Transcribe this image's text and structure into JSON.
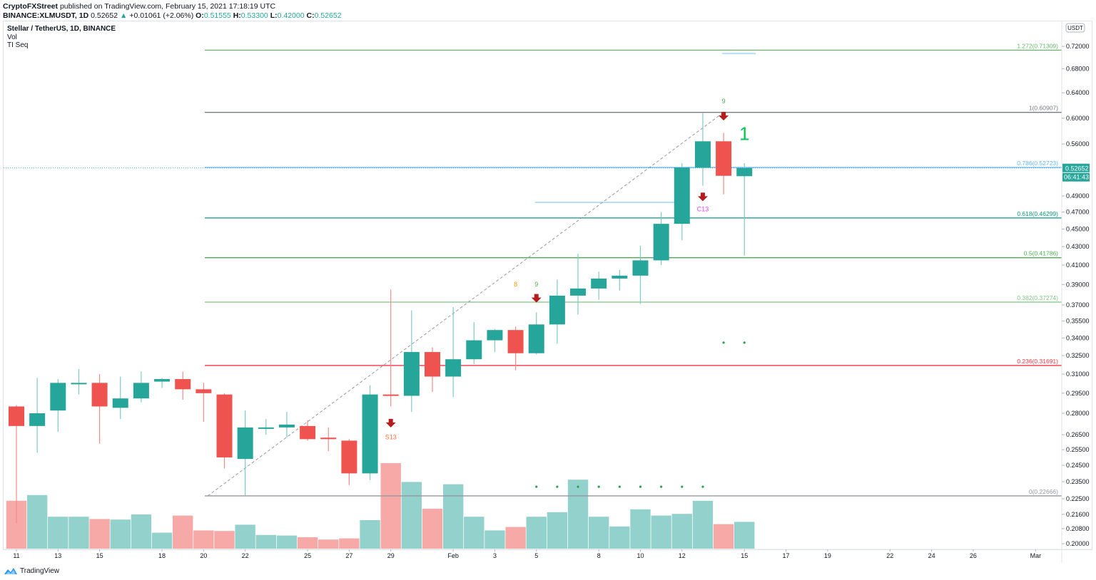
{
  "header": {
    "publisher": "CryptoFXStreet",
    "published_text": "published on TradingView.com, February 15, 2021 17:18:19 UTC",
    "symbol": "BINANCE:XLMUSDT, 1D",
    "last": "0.52652",
    "change": "+0.01061 (+2.06%)",
    "open_label": "O:",
    "open": "0.51555",
    "high_label": "H:",
    "high": "0.53300",
    "low_label": "L:",
    "low": "0.42000",
    "close_label": "C:",
    "close": "0.52652"
  },
  "legend": {
    "title": "Stellar / TetherUS, 1D, BINANCE",
    "vol": "Vol",
    "indicator": "TI Seq"
  },
  "price_axis": {
    "currency": "USDT",
    "last_price_tag": "0.52652",
    "countdown_tag": "06:41:43"
  },
  "footer": {
    "brand": "TradingView"
  },
  "colors": {
    "up": "#26a69a",
    "down": "#ef5350",
    "vol_up": "#93d2cc",
    "vol_down": "#f7a9a7",
    "fib_1272": "#66bb6a",
    "fib_1": "#787b86",
    "fib_0786": "#64b5f6",
    "fib_0618": "#089981",
    "fib_05": "#4caf50",
    "fib_0382": "#81c784",
    "fib_0236": "#f23645",
    "fib_0": "#9598a1"
  },
  "chart_data": {
    "type": "candlestick",
    "title": "Stellar / TetherUS, 1D, BINANCE",
    "xlabel": "",
    "ylabel": "USDT",
    "yscale": "log",
    "ylim": [
      0.196,
      0.75
    ],
    "y_ticks": [
      "0.72000",
      "0.68000",
      "0.64000",
      "0.60000",
      "0.56000",
      "0.52652",
      "0.49000",
      "0.47000",
      "0.45000",
      "0.43000",
      "0.41000",
      "0.39000",
      "0.37000",
      "0.35500",
      "0.34000",
      "0.32500",
      "0.31000",
      "0.29500",
      "0.28000",
      "0.26500",
      "0.25500",
      "0.24500",
      "0.23500",
      "0.22500",
      "0.21600",
      "0.20800",
      "0.20000"
    ],
    "x_ticks": [
      {
        "label": "11",
        "i": 0
      },
      {
        "label": "13",
        "i": 2
      },
      {
        "label": "15",
        "i": 4
      },
      {
        "label": "18",
        "i": 7
      },
      {
        "label": "20",
        "i": 9
      },
      {
        "label": "22",
        "i": 11
      },
      {
        "label": "25",
        "i": 14
      },
      {
        "label": "27",
        "i": 16
      },
      {
        "label": "29",
        "i": 18
      },
      {
        "label": "Feb",
        "i": 21
      },
      {
        "label": "3",
        "i": 23
      },
      {
        "label": "5",
        "i": 25
      },
      {
        "label": "8",
        "i": 28
      },
      {
        "label": "10",
        "i": 30
      },
      {
        "label": "12",
        "i": 32
      },
      {
        "label": "15",
        "i": 35
      },
      {
        "label": "17",
        "i": 37
      },
      {
        "label": "19",
        "i": 39
      },
      {
        "label": "22",
        "i": 42
      },
      {
        "label": "24",
        "i": 44
      },
      {
        "label": "26",
        "i": 46
      },
      {
        "label": "Mar",
        "i": 49
      }
    ],
    "candles": [
      {
        "date": "Jan 11",
        "o": 0.285,
        "h": 0.286,
        "l": 0.211,
        "c": 0.271,
        "vol": 0.42
      },
      {
        "date": "Jan 12",
        "o": 0.271,
        "h": 0.307,
        "l": 0.253,
        "c": 0.28,
        "vol": 0.47
      },
      {
        "date": "Jan 13",
        "o": 0.282,
        "h": 0.306,
        "l": 0.267,
        "c": 0.303,
        "vol": 0.28
      },
      {
        "date": "Jan 14",
        "o": 0.303,
        "h": 0.314,
        "l": 0.294,
        "c": 0.303,
        "vol": 0.28
      },
      {
        "date": "Jan 15",
        "o": 0.303,
        "h": 0.31,
        "l": 0.259,
        "c": 0.285,
        "vol": 0.26
      },
      {
        "date": "Jan 16",
        "o": 0.284,
        "h": 0.308,
        "l": 0.276,
        "c": 0.291,
        "vol": 0.255
      },
      {
        "date": "Jan 17",
        "o": 0.291,
        "h": 0.312,
        "l": 0.288,
        "c": 0.303,
        "vol": 0.3
      },
      {
        "date": "Jan 18",
        "o": 0.304,
        "h": 0.307,
        "l": 0.299,
        "c": 0.306,
        "vol": 0.14
      },
      {
        "date": "Jan 19",
        "o": 0.306,
        "h": 0.312,
        "l": 0.29,
        "c": 0.298,
        "vol": 0.29
      },
      {
        "date": "Jan 20",
        "o": 0.298,
        "h": 0.303,
        "l": 0.274,
        "c": 0.295,
        "vol": 0.16
      },
      {
        "date": "Jan 21",
        "o": 0.294,
        "h": 0.295,
        "l": 0.243,
        "c": 0.25,
        "vol": 0.155
      },
      {
        "date": "Jan 22",
        "o": 0.249,
        "h": 0.282,
        "l": 0.227,
        "c": 0.27,
        "vol": 0.21
      },
      {
        "date": "Jan 23",
        "o": 0.269,
        "h": 0.276,
        "l": 0.265,
        "c": 0.27,
        "vol": 0.12
      },
      {
        "date": "Jan 24",
        "o": 0.27,
        "h": 0.281,
        "l": 0.263,
        "c": 0.272,
        "vol": 0.115
      },
      {
        "date": "Jan 25",
        "o": 0.271,
        "h": 0.275,
        "l": 0.261,
        "c": 0.262,
        "vol": 0.1
      },
      {
        "date": "Jan 26",
        "o": 0.263,
        "h": 0.27,
        "l": 0.254,
        "c": 0.262,
        "vol": 0.08
      },
      {
        "date": "Jan 27",
        "o": 0.261,
        "h": 0.262,
        "l": 0.233,
        "c": 0.24,
        "vol": 0.09
      },
      {
        "date": "Jan 28",
        "o": 0.24,
        "h": 0.301,
        "l": 0.236,
        "c": 0.294,
        "vol": 0.25
      },
      {
        "date": "Jan 29",
        "o": 0.294,
        "h": 0.385,
        "l": 0.285,
        "c": 0.293,
        "vol": 0.75
      },
      {
        "date": "Jan 30",
        "o": 0.293,
        "h": 0.365,
        "l": 0.281,
        "c": 0.328,
        "vol": 0.585
      },
      {
        "date": "Jan 31",
        "o": 0.328,
        "h": 0.332,
        "l": 0.296,
        "c": 0.308,
        "vol": 0.35
      },
      {
        "date": "Feb 1",
        "o": 0.308,
        "h": 0.368,
        "l": 0.292,
        "c": 0.322,
        "vol": 0.565
      },
      {
        "date": "Feb 2",
        "o": 0.322,
        "h": 0.354,
        "l": 0.318,
        "c": 0.338,
        "vol": 0.28
      },
      {
        "date": "Feb 3",
        "o": 0.338,
        "h": 0.348,
        "l": 0.328,
        "c": 0.347,
        "vol": 0.16
      },
      {
        "date": "Feb 4",
        "o": 0.347,
        "h": 0.35,
        "l": 0.313,
        "c": 0.327,
        "vol": 0.19
      },
      {
        "date": "Feb 5",
        "o": 0.327,
        "h": 0.363,
        "l": 0.326,
        "c": 0.352,
        "vol": 0.28
      },
      {
        "date": "Feb 6",
        "o": 0.352,
        "h": 0.395,
        "l": 0.335,
        "c": 0.379,
        "vol": 0.32
      },
      {
        "date": "Feb 7",
        "o": 0.379,
        "h": 0.422,
        "l": 0.361,
        "c": 0.386,
        "vol": 0.605
      },
      {
        "date": "Feb 8",
        "o": 0.386,
        "h": 0.403,
        "l": 0.375,
        "c": 0.396,
        "vol": 0.28
      },
      {
        "date": "Feb 9",
        "o": 0.396,
        "h": 0.405,
        "l": 0.384,
        "c": 0.399,
        "vol": 0.195
      },
      {
        "date": "Feb 10",
        "o": 0.399,
        "h": 0.431,
        "l": 0.371,
        "c": 0.415,
        "vol": 0.345
      },
      {
        "date": "Feb 11",
        "o": 0.415,
        "h": 0.47,
        "l": 0.41,
        "c": 0.456,
        "vol": 0.29
      },
      {
        "date": "Feb 12",
        "o": 0.456,
        "h": 0.533,
        "l": 0.437,
        "c": 0.527,
        "vol": 0.305
      },
      {
        "date": "Feb 13",
        "o": 0.527,
        "h": 0.608,
        "l": 0.503,
        "c": 0.564,
        "vol": 0.42
      },
      {
        "date": "Feb 14",
        "o": 0.564,
        "h": 0.577,
        "l": 0.492,
        "c": 0.516,
        "vol": 0.215
      },
      {
        "date": "Feb 15",
        "o": 0.5155,
        "h": 0.533,
        "l": 0.42,
        "c": 0.5265,
        "vol": 0.235
      }
    ],
    "fib_levels": [
      {
        "ratio": "1.272",
        "price": 0.71309,
        "label": "1.272(0.71309)",
        "color": "#66bb6a"
      },
      {
        "ratio": "1",
        "price": 0.60907,
        "label": "1(0.60907)",
        "color": "#787b86"
      },
      {
        "ratio": "0.786",
        "price": 0.52723,
        "label": "0.786(0.52723)",
        "color": "#64b5f6"
      },
      {
        "ratio": "0.618",
        "price": 0.46299,
        "label": "0.618(0.46299)",
        "color": "#089981"
      },
      {
        "ratio": "0.5",
        "price": 0.41786,
        "label": "0.5(0.41786)",
        "color": "#4caf50"
      },
      {
        "ratio": "0.382",
        "price": 0.37274,
        "label": "0.382(0.37274)",
        "color": "#81c784"
      },
      {
        "ratio": "0.236",
        "price": 0.31691,
        "label": "0.236(0.31691)",
        "color": "#f23645"
      },
      {
        "ratio": "0",
        "price": 0.22666,
        "label": "0(0.22666)",
        "color": "#9598a1"
      }
    ],
    "annotations": [
      {
        "type": "arrow-down",
        "i": 18,
        "price": 0.272,
        "color": "#b71c1c"
      },
      {
        "type": "text",
        "i": 18,
        "price": 0.262,
        "text": "S13",
        "color": "#ff7043"
      },
      {
        "type": "text",
        "i": 24,
        "price": 0.388,
        "text": "8",
        "color": "#ff9800"
      },
      {
        "type": "text",
        "i": 25,
        "price": 0.388,
        "text": "9",
        "color": "#4caf50"
      },
      {
        "type": "arrow-down",
        "i": 25,
        "price": 0.375,
        "color": "#b71c1c"
      },
      {
        "type": "text",
        "i": 34,
        "price": 0.623,
        "text": "9",
        "color": "#4caf50"
      },
      {
        "type": "arrow-down",
        "i": 34,
        "price": 0.601,
        "color": "#b71c1c"
      },
      {
        "type": "arrow-down",
        "i": 33,
        "price": 0.487,
        "color": "#b71c1c"
      },
      {
        "type": "text",
        "i": 33,
        "price": 0.471,
        "text": "C13",
        "color": "#e040fb"
      },
      {
        "type": "big-text",
        "i": 35,
        "price": 0.566,
        "text": "1",
        "color": "#00c853"
      }
    ],
    "dots_upper": [
      {
        "i": 34,
        "price": 0.336
      },
      {
        "i": 35,
        "price": 0.336
      }
    ],
    "dots_lower": [
      {
        "i": 25,
        "price": 0.232
      },
      {
        "i": 26,
        "price": 0.232
      },
      {
        "i": 27,
        "price": 0.232
      },
      {
        "i": 28,
        "price": 0.232
      },
      {
        "i": 29,
        "price": 0.232
      },
      {
        "i": 30,
        "price": 0.232
      },
      {
        "i": 31,
        "price": 0.232
      },
      {
        "i": 32,
        "price": 0.232
      },
      {
        "i": 33,
        "price": 0.232
      }
    ],
    "trendline": {
      "from_i": 9.2,
      "from_price": 0.22666,
      "to_i": 34,
      "to_price": 0.60907,
      "style": "dashed"
    },
    "horizontal_segments": [
      {
        "from_i": 25,
        "to_i": 32,
        "price": 0.482,
        "color": "#b3e0f2"
      },
      {
        "from_i": 34,
        "to_i": 35,
        "price": 0.707,
        "color": "#b3e0f2"
      }
    ]
  }
}
